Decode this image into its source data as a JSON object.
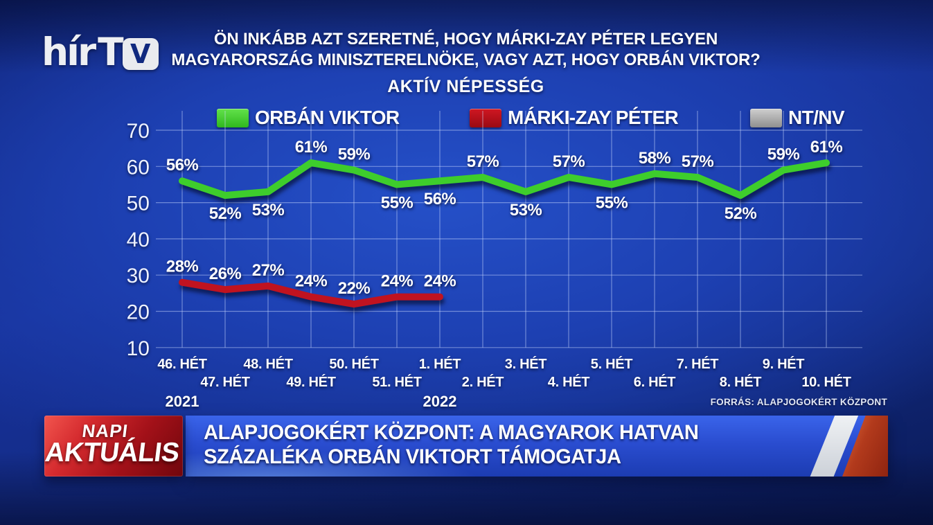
{
  "brand": {
    "logo_hir": "hír",
    "logo_t": "T",
    "logo_v": "V"
  },
  "header": {
    "question_line1": "ÖN INKÁBB AZT SZERETNÉ, HOGY MÁRKI-ZAY PÉTER LEGYEN",
    "question_line2": "MAGYARORSZÁG MINISZTERELNÖKE, VAGY AZT, HOGY ORBÁN VIKTOR?",
    "subtitle": "AKTÍV NÉPESSÉG"
  },
  "chart_data": {
    "type": "line",
    "title": "AKTÍV NÉPESSÉG",
    "unit": "%",
    "categories": [
      "46. HÉT",
      "47. HÉT",
      "48. HÉT",
      "49. HÉT",
      "50. HÉT",
      "51. HÉT",
      "1. HÉT",
      "2. HÉT",
      "3. HÉT",
      "4. HÉT",
      "5. HÉT",
      "6. HÉT",
      "7. HÉT",
      "8. HÉT",
      "9. HÉT",
      "10. HÉT"
    ],
    "series": [
      {
        "name": "ORBÁN VIKTOR",
        "color": "#3ecd2c",
        "values": [
          56,
          52,
          53,
          61,
          59,
          55,
          56,
          57,
          53,
          57,
          55,
          58,
          57,
          52,
          59,
          61
        ],
        "label_positions": [
          "above",
          "below",
          "below",
          "above",
          "above",
          "below",
          "below",
          "above",
          "below",
          "above",
          "below",
          "above",
          "above",
          "below",
          "above",
          "above"
        ]
      },
      {
        "name": "MÁRKI-ZAY PÉTER",
        "color": "#c01320",
        "values": [
          28,
          26,
          27,
          24,
          22,
          24,
          24
        ],
        "label_positions": [
          "above",
          "above",
          "above",
          "above",
          "above",
          "above",
          "above"
        ]
      },
      {
        "name": "NT/NV",
        "color": "#a8a8a8",
        "values": []
      }
    ],
    "y_ticks": [
      70,
      60,
      50,
      40,
      30,
      20,
      10
    ],
    "ylim": [
      10,
      70
    ],
    "grid": true,
    "legend_position": "top",
    "years": [
      {
        "label": "2021",
        "index": 0
      },
      {
        "label": "2022",
        "index": 6
      }
    ]
  },
  "source": "FORRÁS: ALAPJOGOKÉRT KÖZPONT",
  "ticker": {
    "badge_top": "NAPI",
    "badge_bottom": "AKTUÁLIS",
    "headline_line1": "ALAPJOGOKÉRT KÖZPONT: A MAGYAROK HATVAN",
    "headline_line2": "SZÁZALÉKA ORBÁN VIKTORT TÁMOGATJA"
  }
}
